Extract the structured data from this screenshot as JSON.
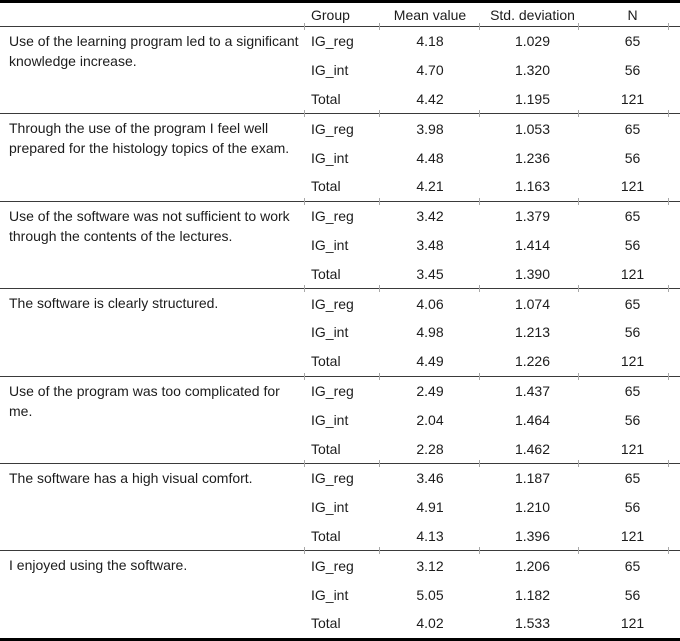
{
  "table": {
    "headers": {
      "group": "Group",
      "mean": "Mean value",
      "std": "Std. deviation",
      "n": "N"
    },
    "blocks": [
      {
        "statement": "Use of the learning program led to a significant knowledge increase.",
        "rows": [
          {
            "group": "IG_reg",
            "mean": "4.18",
            "std": "1.029",
            "n": "65"
          },
          {
            "group": "IG_int",
            "mean": "4.70",
            "std": "1.320",
            "n": "56"
          },
          {
            "group": "Total",
            "mean": "4.42",
            "std": "1.195",
            "n": "121"
          }
        ]
      },
      {
        "statement": "Through the use of the program I feel well prepared for the histology topics of the exam.",
        "rows": [
          {
            "group": "IG_reg",
            "mean": "3.98",
            "std": "1.053",
            "n": "65"
          },
          {
            "group": "IG_int",
            "mean": "4.48",
            "std": "1.236",
            "n": "56"
          },
          {
            "group": "Total",
            "mean": "4.21",
            "std": "1.163",
            "n": "121"
          }
        ]
      },
      {
        "statement": "Use of the software was not sufficient to work through the contents of the lectures.",
        "rows": [
          {
            "group": "IG_reg",
            "mean": "3.42",
            "std": "1.379",
            "n": "65"
          },
          {
            "group": "IG_int",
            "mean": "3.48",
            "std": "1.414",
            "n": "56"
          },
          {
            "group": "Total",
            "mean": "3.45",
            "std": "1.390",
            "n": "121"
          }
        ]
      },
      {
        "statement": "The software is clearly structured.",
        "rows": [
          {
            "group": "IG_reg",
            "mean": "4.06",
            "std": "1.074",
            "n": "65"
          },
          {
            "group": "IG_int",
            "mean": "4.98",
            "std": "1.213",
            "n": "56"
          },
          {
            "group": "Total",
            "mean": "4.49",
            "std": "1.226",
            "n": "121"
          }
        ]
      },
      {
        "statement": "Use of the program was too complicated for me.",
        "rows": [
          {
            "group": "IG_reg",
            "mean": "2.49",
            "std": "1.437",
            "n": "65"
          },
          {
            "group": "IG_int",
            "mean": "2.04",
            "std": "1.464",
            "n": "56"
          },
          {
            "group": "Total",
            "mean": "2.28",
            "std": "1.462",
            "n": "121"
          }
        ]
      },
      {
        "statement": "The software has a high visual comfort.",
        "rows": [
          {
            "group": "IG_reg",
            "mean": "3.46",
            "std": "1.187",
            "n": "65"
          },
          {
            "group": "IG_int",
            "mean": "4.91",
            "std": "1.210",
            "n": "56"
          },
          {
            "group": "Total",
            "mean": "4.13",
            "std": "1.396",
            "n": "121"
          }
        ]
      },
      {
        "statement": "I enjoyed using the software.",
        "rows": [
          {
            "group": "IG_reg",
            "mean": "3.12",
            "std": "1.206",
            "n": "65"
          },
          {
            "group": "IG_int",
            "mean": "5.05",
            "std": "1.182",
            "n": "56"
          },
          {
            "group": "Total",
            "mean": "4.02",
            "std": "1.533",
            "n": "121"
          }
        ]
      }
    ]
  }
}
